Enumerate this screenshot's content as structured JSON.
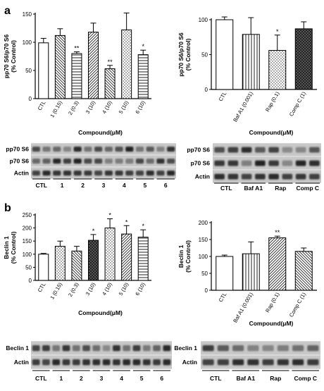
{
  "panel_a_label": "a",
  "panel_b_label": "b",
  "chart_data": [
    {
      "id": "a-left",
      "type": "bar",
      "ylabel_lines": [
        "pp70 S6/p70 S6",
        "(% Control)"
      ],
      "xlabel": "Compound(μM)",
      "ylim": [
        0,
        150
      ],
      "yticks": [
        0,
        50,
        100,
        150
      ],
      "categories": [
        "CTL",
        "1 (0.15)",
        "2 (0.3)",
        "3 (10)",
        "4 (10)",
        "5 (10)",
        "6 (10)"
      ],
      "values": [
        99,
        112,
        80,
        118,
        53,
        122,
        78
      ],
      "errors": [
        8,
        12,
        3,
        16,
        6,
        30,
        8
      ],
      "significance": [
        "",
        "",
        "**",
        "",
        "**",
        "",
        "*"
      ]
    },
    {
      "id": "a-right",
      "type": "bar",
      "ylabel_lines": [
        "pp70 S6/p70 S6",
        "(% Control)"
      ],
      "xlabel": "Compound(μM)",
      "ylim": [
        0,
        100
      ],
      "yticks": [
        0,
        50,
        100
      ],
      "categories": [
        "CTL",
        "Baf A1 (0.001)",
        "Rap (0.1)",
        "Comp C (1)"
      ],
      "values": [
        100,
        79,
        56,
        87
      ],
      "errors": [
        4,
        24,
        22,
        10
      ],
      "significance": [
        "",
        "",
        "*",
        ""
      ]
    },
    {
      "id": "b-left",
      "type": "bar",
      "ylabel_lines": [
        "Beclin 1",
        "(% Control)"
      ],
      "xlabel": "Compound(μM)",
      "ylim": [
        0,
        250
      ],
      "yticks": [
        0,
        50,
        100,
        150,
        200,
        250
      ],
      "categories": [
        "CTL",
        "1 (0.15)",
        "2 (0.3)",
        "3 (10)",
        "4 (10)",
        "5 (10)",
        "6 (10)"
      ],
      "values": [
        100,
        130,
        112,
        153,
        200,
        177,
        165
      ],
      "errors": [
        3,
        20,
        18,
        22,
        35,
        32,
        28
      ],
      "significance": [
        "",
        "",
        "",
        "*",
        "*",
        "*",
        "*"
      ]
    },
    {
      "id": "b-right",
      "type": "bar",
      "ylabel_lines": [
        "Beclin 1",
        "(% Control)"
      ],
      "xlabel": "Compound(μM)",
      "ylim": [
        0,
        200
      ],
      "yticks": [
        0,
        50,
        100,
        150,
        200
      ],
      "categories": [
        "CTL",
        "Baf A1 (0.001)",
        "Rap (0.1)",
        "Comp C (1)"
      ],
      "values": [
        100,
        108,
        155,
        115
      ],
      "errors": [
        4,
        35,
        5,
        10
      ],
      "significance": [
        "",
        "",
        "**",
        ""
      ]
    }
  ],
  "blots": [
    {
      "id": "blot-a-left",
      "rows": [
        "pp70 S6",
        "p70 S6",
        "Actin"
      ],
      "groups": [
        "CTL",
        "1",
        "2",
        "3",
        "4",
        "5",
        "6"
      ],
      "lanes": 14
    },
    {
      "id": "blot-a-right",
      "rows": [
        "pp70 S6",
        "p70 S6",
        "Actin"
      ],
      "groups": [
        "CTL",
        "Baf A1",
        "Rap",
        "Comp C"
      ],
      "lanes": 8
    },
    {
      "id": "blot-b-left",
      "rows": [
        "Beclin 1",
        "Actin"
      ],
      "groups": [
        "CTL",
        "1",
        "2",
        "3",
        "4",
        "5",
        "6"
      ],
      "lanes": 14
    },
    {
      "id": "blot-b-right",
      "rows": [
        "Beclin 1",
        "Actin"
      ],
      "groups": [
        "CTL",
        "Baf A1",
        "Rap",
        "Comp C"
      ],
      "lanes": 8
    }
  ]
}
